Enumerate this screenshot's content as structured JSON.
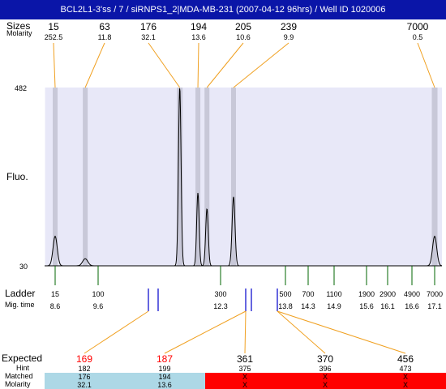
{
  "title": "BCL2L1-3'ss / 7 / siRNPS1_2|MDA-MB-231 (2007-04-12 96hrs) / Well ID 1020006",
  "header_labels": {
    "sizes": "Sizes",
    "molarity": "Molarity"
  },
  "peaks_top": [
    {
      "size": "15",
      "molarity": "252.5"
    },
    {
      "size": "63",
      "molarity": "11.8"
    },
    {
      "size": "176",
      "molarity": "32.1"
    },
    {
      "size": "194",
      "molarity": "13.6"
    },
    {
      "size": "205",
      "molarity": "10.6"
    },
    {
      "size": "239",
      "molarity": "9.9"
    },
    {
      "size": "7000",
      "molarity": "0.5"
    }
  ],
  "y_axis": {
    "label": "Fluo.",
    "max": "482",
    "min": "30"
  },
  "ladder": {
    "label": "Ladder",
    "mig_label": "Mig. time",
    "items": [
      {
        "size": "15",
        "time": "8.6"
      },
      {
        "size": "100",
        "time": "9.6"
      },
      {
        "size": "300",
        "time": "12.3"
      },
      {
        "size": "500",
        "time": "13.8"
      },
      {
        "size": "700",
        "time": "14.3"
      },
      {
        "size": "1100",
        "time": "14.9"
      },
      {
        "size": "1900",
        "time": "15.6"
      },
      {
        "size": "2900",
        "time": "16.1"
      },
      {
        "size": "4900",
        "time": "16.6"
      },
      {
        "size": "7000",
        "time": "17.1"
      }
    ]
  },
  "table": {
    "expected_label": "Expected",
    "hint_label": "Hint",
    "matched_label": "Matched",
    "molarity_label": "Molarity",
    "columns": [
      {
        "expected": "169",
        "hint": "182",
        "matched": "176",
        "molarity": "32.1",
        "status": "matched"
      },
      {
        "expected": "187",
        "hint": "199",
        "matched": "194",
        "molarity": "13.6",
        "status": "matched"
      },
      {
        "expected": "361",
        "hint": "375",
        "matched": "X",
        "molarity": "X",
        "status": "missing"
      },
      {
        "expected": "370",
        "hint": "396",
        "matched": "X",
        "molarity": "X",
        "status": "missing"
      },
      {
        "expected": "456",
        "hint": "473",
        "matched": "X",
        "molarity": "X",
        "status": "missing"
      }
    ]
  },
  "colors": {
    "title_bg": "#0a15a8",
    "plot_bg": "#e8e8f8",
    "peak_band": "#c8c8d8",
    "leader_line": "#f0a020",
    "ladder_tick": "#006400",
    "marker": "#0000cc",
    "expected_matched": "#ff0000",
    "matched_band": "#add8e6",
    "missing_band": "#ff0000"
  },
  "chart_data": {
    "type": "line",
    "title": "",
    "xlabel": "",
    "ylabel": "Fluo.",
    "ylim": [
      30,
      482
    ],
    "x_unit": "Mig. time",
    "peaks": [
      {
        "time": 8.6,
        "height": 105
      },
      {
        "time": 9.3,
        "height": 48
      },
      {
        "time": 11.4,
        "height": 482
      },
      {
        "time": 11.8,
        "height": 215
      },
      {
        "time": 12.0,
        "height": 175
      },
      {
        "time": 12.6,
        "height": 205
      },
      {
        "time": 17.1,
        "height": 105
      }
    ]
  }
}
